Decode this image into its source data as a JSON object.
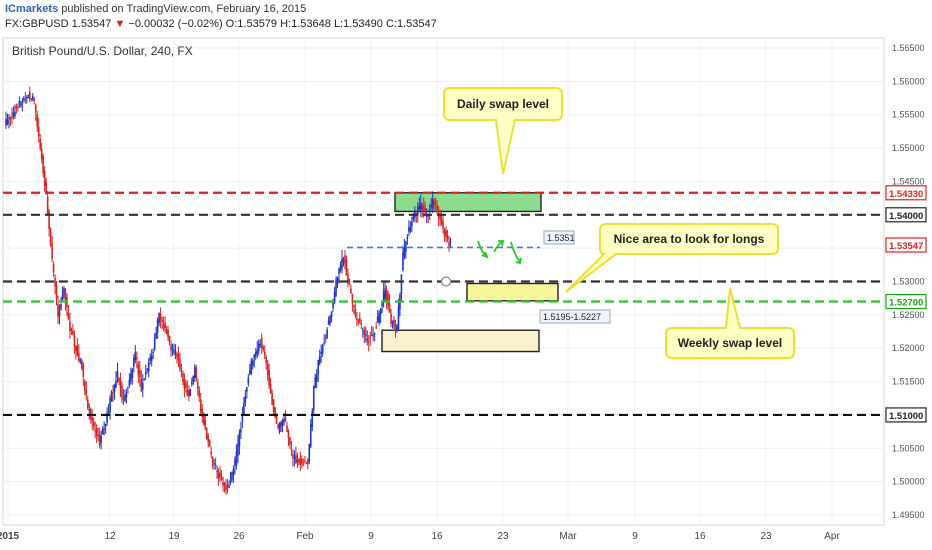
{
  "header": {
    "brand": "ICmarkets",
    "published_text": "published on TradingView.com, February 16, 2015",
    "symbol": "FX:GBPUSD",
    "last": "1.53547",
    "change_arrow": "▼",
    "change": "−0.00032 (−0.02%)",
    "open": "O:1.53579",
    "high": "H:1.53648",
    "low": "L:1.53490",
    "close": "C:1.53547"
  },
  "chart_data": {
    "type": "candlestick",
    "title": "British Pound/U.S. Dollar, 240, FX",
    "x_ticks": [
      "2015",
      "12",
      "19",
      "26",
      "Feb",
      "9",
      "16",
      "23",
      "Mar",
      "9",
      "16",
      "23",
      "Apr"
    ],
    "y_ticks": [
      "1.56500",
      "1.56000",
      "1.55500",
      "1.55000",
      "1.54500",
      "1.54000",
      "1.53500",
      "1.53000",
      "1.52500",
      "1.52000",
      "1.51500",
      "1.51000",
      "1.50500",
      "1.50000",
      "1.49500"
    ],
    "ylim": [
      1.4935,
      1.5665
    ],
    "price_labels": {
      "daily": "1.54330",
      "level_154": "1.54000",
      "current": "1.53547",
      "weekly": "1.52700",
      "level_151": "1.51000"
    },
    "levels": [
      {
        "value": 1.5433,
        "style": "dashed",
        "color": "#e02020",
        "label": "1.54330"
      },
      {
        "value": 1.54,
        "style": "dashed",
        "color": "#333333",
        "label": "1.54000"
      },
      {
        "value": 1.53,
        "style": "dashed",
        "color": "#333333"
      },
      {
        "value": 1.527,
        "style": "dashed",
        "color": "#22cc22",
        "label": "1.52700"
      },
      {
        "value": 1.51,
        "style": "dashed",
        "color": "#111111",
        "label": "1.51000"
      },
      {
        "value": 1.5351,
        "style": "dashed",
        "color": "#4a7fd0",
        "label": "1.5351"
      }
    ],
    "zones": [
      {
        "label": "",
        "y_range": [
          1.5405,
          1.5433
        ],
        "color": "#8ddc8d"
      },
      {
        "label": "",
        "y_range": [
          1.5271,
          1.5297
        ],
        "color": "#f6f59a"
      },
      {
        "label": "1.5195-1.5227",
        "y_range": [
          1.5195,
          1.5227
        ],
        "color": "#faf0cc"
      }
    ],
    "annotations": {
      "daily_swap": "Daily swap level",
      "longs": "Nice area to look for longs",
      "weekly_swap": "Weekly swap level",
      "zone_label": "1.5195-1.5227",
      "short_label": "1.5351"
    },
    "close_path": [
      [
        0,
        1.5535
      ],
      [
        1,
        1.5545
      ],
      [
        2,
        1.556
      ],
      [
        3,
        1.5572
      ],
      [
        4,
        1.558
      ],
      [
        5,
        1.557
      ],
      [
        6,
        1.55
      ],
      [
        7,
        1.543
      ],
      [
        8,
        1.533
      ],
      [
        9,
        1.525
      ],
      [
        10,
        1.5285
      ],
      [
        11,
        1.523
      ],
      [
        12,
        1.52
      ],
      [
        13,
        1.517
      ],
      [
        14,
        1.511
      ],
      [
        15,
        1.508
      ],
      [
        16,
        1.506
      ],
      [
        17,
        1.509
      ],
      [
        18,
        1.513
      ],
      [
        19,
        1.516
      ],
      [
        20,
        1.512
      ],
      [
        21,
        1.515
      ],
      [
        22,
        1.519
      ],
      [
        23,
        1.514
      ],
      [
        24,
        1.517
      ],
      [
        25,
        1.52
      ],
      [
        26,
        1.525
      ],
      [
        27,
        1.523
      ],
      [
        28,
        1.52
      ],
      [
        29,
        1.519
      ],
      [
        30,
        1.515
      ],
      [
        31,
        1.513
      ],
      [
        32,
        1.517
      ],
      [
        33,
        1.511
      ],
      [
        34,
        1.507
      ],
      [
        35,
        1.503
      ],
      [
        36,
        1.501
      ],
      [
        37,
        1.499
      ],
      [
        38,
        1.5
      ],
      [
        39,
        1.504
      ],
      [
        40,
        1.51
      ],
      [
        41,
        1.516
      ],
      [
        42,
        1.519
      ],
      [
        43,
        1.521
      ],
      [
        44,
        1.518
      ],
      [
        45,
        1.512
      ],
      [
        46,
        1.508
      ],
      [
        47,
        1.51
      ],
      [
        48,
        1.505
      ],
      [
        49,
        1.503
      ],
      [
        50,
        1.503
      ],
      [
        51,
        1.503
      ],
      [
        52,
        1.514
      ],
      [
        53,
        1.519
      ],
      [
        54,
        1.522
      ],
      [
        55,
        1.526
      ],
      [
        56,
        1.531
      ],
      [
        57,
        1.534
      ],
      [
        58,
        1.529
      ],
      [
        59,
        1.525
      ],
      [
        60,
        1.523
      ],
      [
        61,
        1.521
      ],
      [
        62,
        1.522
      ],
      [
        63,
        1.525
      ],
      [
        64,
        1.529
      ],
      [
        65,
        1.524
      ],
      [
        66,
        1.523
      ],
      [
        67,
        1.534
      ],
      [
        68,
        1.538
      ],
      [
        69,
        1.54
      ],
      [
        70,
        1.5415
      ],
      [
        71,
        1.5395
      ],
      [
        72,
        1.542
      ],
      [
        73,
        1.54
      ],
      [
        74,
        1.537
      ],
      [
        75,
        1.5355
      ]
    ]
  }
}
